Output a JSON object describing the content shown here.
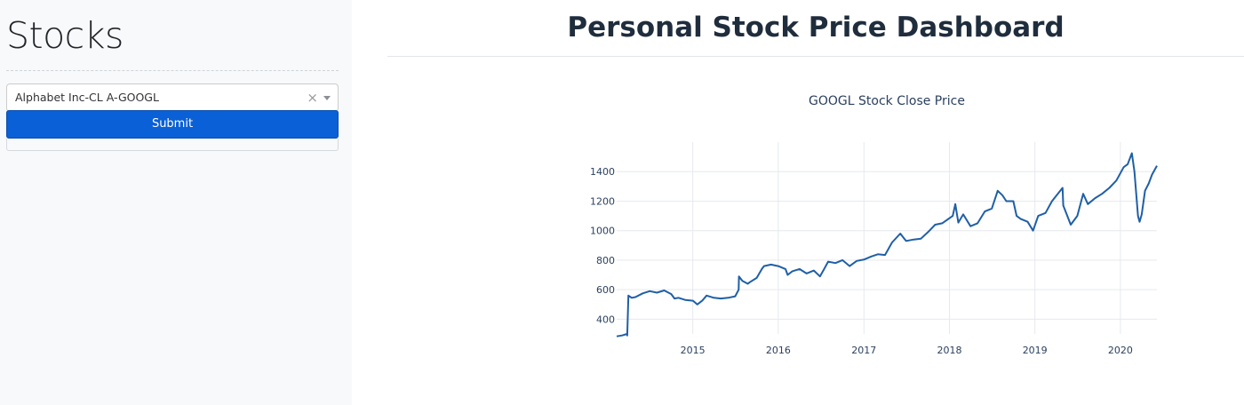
{
  "sidebar": {
    "title": "Stocks",
    "select": {
      "value": "Alphabet Inc-CL A-GOOGL",
      "clear_icon": "×"
    },
    "submit_label": "Submit"
  },
  "header": {
    "title": "Personal Stock Price Dashboard"
  },
  "colors": {
    "line": "#1f5fa6",
    "button": "#0a60d6",
    "grid": "#e6e9ee",
    "axis_text": "#2a3f5f"
  },
  "chart_data": {
    "type": "line",
    "title": "GOOGL Stock Close Price",
    "xlabel": "",
    "ylabel": "",
    "x_ticks": [
      "2015",
      "2016",
      "2017",
      "2018",
      "2019",
      "2020"
    ],
    "y_ticks": [
      400,
      600,
      800,
      1000,
      1200,
      1400
    ],
    "xlim": [
      "2014-02-10",
      "2020-06-05"
    ],
    "ylim": [
      300,
      1600
    ],
    "grid": true,
    "series": [
      {
        "x": [
          "2014-02-10",
          "2014-03-05",
          "2014-03-26",
          "2014-03-27",
          "2014-04-01",
          "2014-04-15",
          "2014-05-01",
          "2014-06-01",
          "2014-07-01",
          "2014-08-01",
          "2014-09-01",
          "2014-10-01",
          "2014-10-15",
          "2014-11-01",
          "2014-12-01",
          "2015-01-02",
          "2015-01-20",
          "2015-02-10",
          "2015-03-01",
          "2015-04-01",
          "2015-05-01",
          "2015-06-01",
          "2015-07-01",
          "2015-07-16",
          "2015-07-17",
          "2015-08-01",
          "2015-08-24",
          "2015-09-01",
          "2015-10-01",
          "2015-10-23",
          "2015-11-01",
          "2015-12-01",
          "2016-01-01",
          "2016-02-01",
          "2016-02-10",
          "2016-03-01",
          "2016-04-01",
          "2016-05-01",
          "2016-06-01",
          "2016-06-27",
          "2016-07-15",
          "2016-08-01",
          "2016-09-01",
          "2016-10-01",
          "2016-11-01",
          "2016-12-01",
          "2017-01-03",
          "2017-02-01",
          "2017-03-01",
          "2017-04-01",
          "2017-05-01",
          "2017-06-05",
          "2017-06-30",
          "2017-08-01",
          "2017-09-01",
          "2017-10-01",
          "2017-11-01",
          "2017-12-01",
          "2018-01-15",
          "2018-01-26",
          "2018-02-08",
          "2018-03-01",
          "2018-04-01",
          "2018-05-01",
          "2018-06-01",
          "2018-07-01",
          "2018-07-26",
          "2018-08-15",
          "2018-09-01",
          "2018-10-01",
          "2018-10-15",
          "2018-11-01",
          "2018-12-01",
          "2018-12-24",
          "2019-01-15",
          "2019-02-15",
          "2019-03-15",
          "2019-04-29",
          "2019-05-02",
          "2019-06-03",
          "2019-07-01",
          "2019-07-26",
          "2019-08-15",
          "2019-09-15",
          "2019-10-15",
          "2019-11-15",
          "2019-12-15",
          "2020-01-15",
          "2020-02-01",
          "2020-02-19",
          "2020-03-01",
          "2020-03-16",
          "2020-03-23",
          "2020-04-01",
          "2020-04-15",
          "2020-05-01",
          "2020-05-15",
          "2020-06-05"
        ],
        "y": [
          284,
          290,
          300,
          290,
          560,
          545,
          550,
          575,
          590,
          580,
          595,
          570,
          540,
          545,
          530,
          525,
          500,
          525,
          560,
          545,
          540,
          545,
          555,
          600,
          690,
          660,
          640,
          650,
          680,
          740,
          760,
          770,
          760,
          740,
          700,
          725,
          740,
          710,
          730,
          690,
          740,
          790,
          780,
          800,
          760,
          795,
          805,
          825,
          840,
          835,
          920,
          980,
          930,
          940,
          945,
          990,
          1040,
          1050,
          1100,
          1180,
          1055,
          1110,
          1030,
          1050,
          1130,
          1150,
          1270,
          1240,
          1200,
          1200,
          1100,
          1080,
          1060,
          1000,
          1100,
          1120,
          1200,
          1290,
          1170,
          1040,
          1100,
          1250,
          1180,
          1220,
          1250,
          1290,
          1340,
          1430,
          1450,
          1525,
          1400,
          1100,
          1060,
          1110,
          1270,
          1320,
          1380,
          1440
        ]
      }
    ]
  }
}
